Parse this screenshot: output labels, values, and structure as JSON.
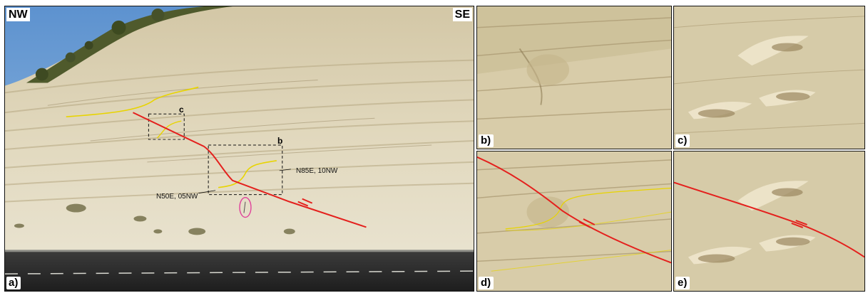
{
  "figure": {
    "orientation_left": "NW",
    "orientation_right": "SE",
    "panels": {
      "a": {
        "letter": "a)"
      },
      "b": {
        "letter": "b)"
      },
      "c": {
        "letter": "c)"
      },
      "d": {
        "letter": "d)"
      },
      "e": {
        "letter": "e)"
      }
    },
    "inset_labels": {
      "b": "b",
      "c": "c"
    },
    "measurements": {
      "upper": "N85E, 10NW",
      "lower": "N50E, 05NW"
    }
  },
  "colors": {
    "fault_trace": "#e4201d",
    "bed_trace": "#e8d400",
    "ellipse_marker": "#e0409a",
    "outcrop": "#ddd3b5",
    "sky": "#6f9fd0",
    "road": "#2a2a2a"
  }
}
